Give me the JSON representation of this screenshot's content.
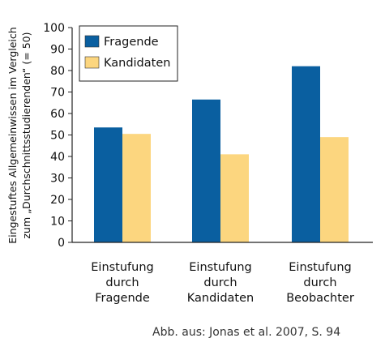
{
  "chart_data": {
    "type": "bar",
    "categories": [
      [
        "Einstufung",
        "durch",
        "Fragende"
      ],
      [
        "Einstufung",
        "durch",
        "Kandidaten"
      ],
      [
        "Einstufung",
        "durch",
        "Beobachter"
      ]
    ],
    "series": [
      {
        "name": "Fragende",
        "color": "#0a5fa0",
        "values": [
          53.5,
          66.5,
          82
        ]
      },
      {
        "name": "Kandidaten",
        "color": "#fcd67f",
        "values": [
          50.5,
          41,
          49
        ]
      }
    ],
    "ylabel": [
      "Eingestuftes Allgemeinwissen im Vergleich",
      "zum „Durchschnittsstudierenden“ (= 50)"
    ],
    "ylim": [
      0,
      100
    ],
    "yticks": [
      0,
      10,
      20,
      30,
      40,
      50,
      60,
      70,
      80,
      90,
      100
    ],
    "legend_position": "top-left",
    "grid": false
  },
  "caption": "Abb. aus: Jonas et al. 2007, S. 94"
}
